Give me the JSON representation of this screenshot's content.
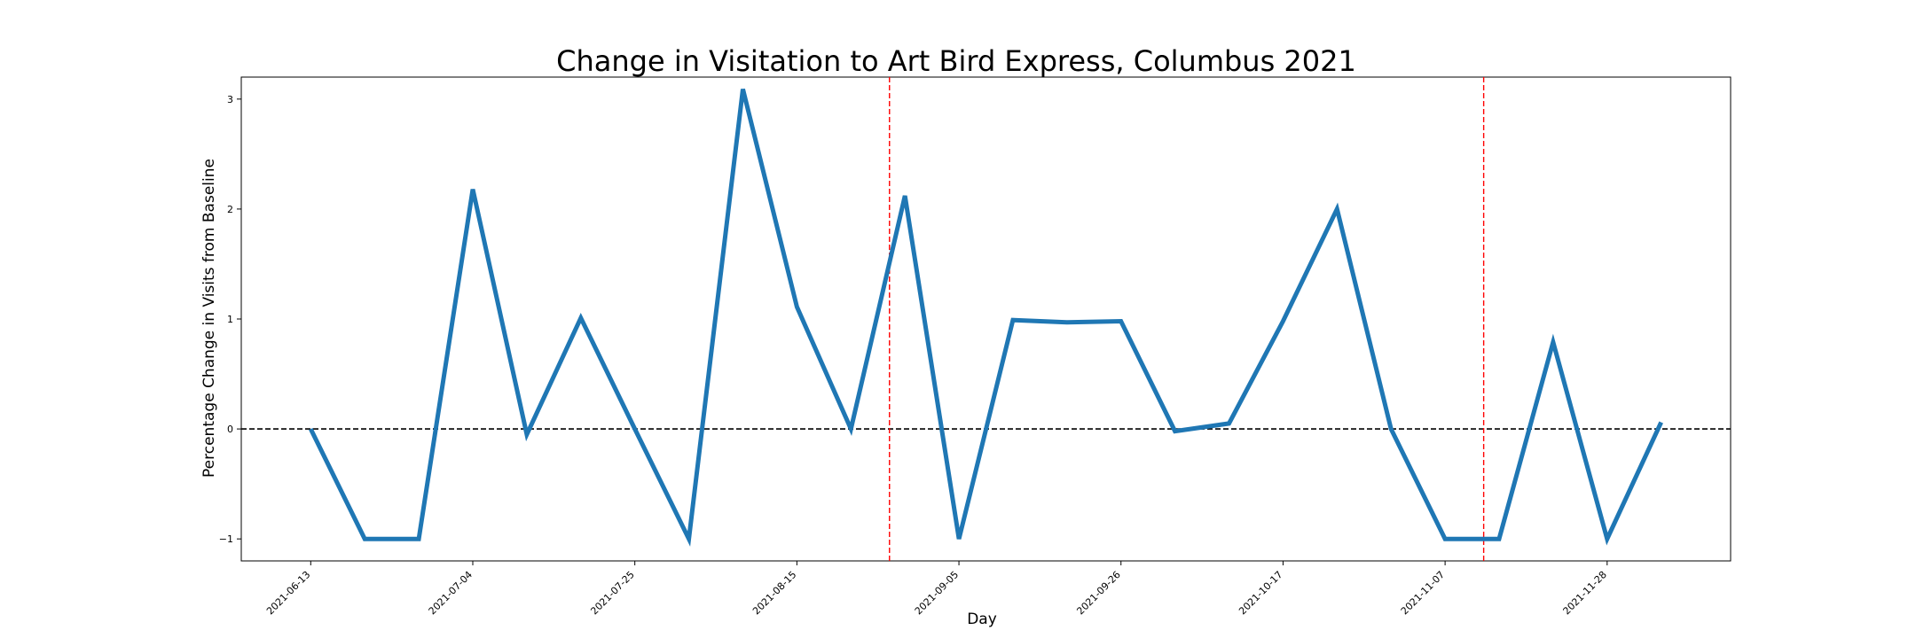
{
  "chart_data": {
    "type": "line",
    "title": "Change in Visitation to Art Bird Express, Columbus 2021",
    "xlabel": "Day",
    "ylabel": "Percentage Change in Visits from Baseline",
    "x": [
      "2021-06-13",
      "2021-06-20",
      "2021-06-27",
      "2021-07-04",
      "2021-07-11",
      "2021-07-18",
      "2021-07-25",
      "2021-08-01",
      "2021-08-08",
      "2021-08-15",
      "2021-08-22",
      "2021-08-29",
      "2021-09-05",
      "2021-09-12",
      "2021-09-19",
      "2021-09-26",
      "2021-10-03",
      "2021-10-10",
      "2021-10-17",
      "2021-10-24",
      "2021-10-31",
      "2021-11-07",
      "2021-11-14",
      "2021-11-21",
      "2021-11-28",
      "2021-12-05"
    ],
    "series": [
      {
        "values": [
          0,
          -1,
          -1,
          2.18,
          -0.05,
          1.01,
          0,
          -1,
          3.09,
          1.11,
          0,
          2.12,
          -1,
          0.99,
          0.97,
          0.98,
          -0.02,
          0.05,
          0.98,
          2.0,
          0,
          -1,
          -1,
          0.79,
          -1,
          0.06
        ],
        "color": "#1f77b4"
      }
    ],
    "x_ticks": [
      "2021-06-13",
      "2021-07-04",
      "2021-07-25",
      "2021-08-15",
      "2021-09-05",
      "2021-09-26",
      "2021-10-17",
      "2021-11-07",
      "2021-11-28"
    ],
    "y_ticks": [
      "3",
      "2",
      "1",
      "0",
      "−1"
    ],
    "y_tick_values": [
      3,
      2,
      1,
      0,
      -1
    ],
    "ylim": [
      -1.2,
      3.2
    ],
    "xlim": [
      "2021-06-04",
      "2021-12-14"
    ],
    "baseline": {
      "y": 0,
      "color": "#000000",
      "style": "dashed"
    },
    "vertical_markers": [
      {
        "x": "2021-08-27",
        "color": "#ff0000",
        "style": "dashed"
      },
      {
        "x": "2021-11-12",
        "color": "#ff0000",
        "style": "dashed"
      }
    ],
    "grid": false,
    "legend": "none"
  }
}
